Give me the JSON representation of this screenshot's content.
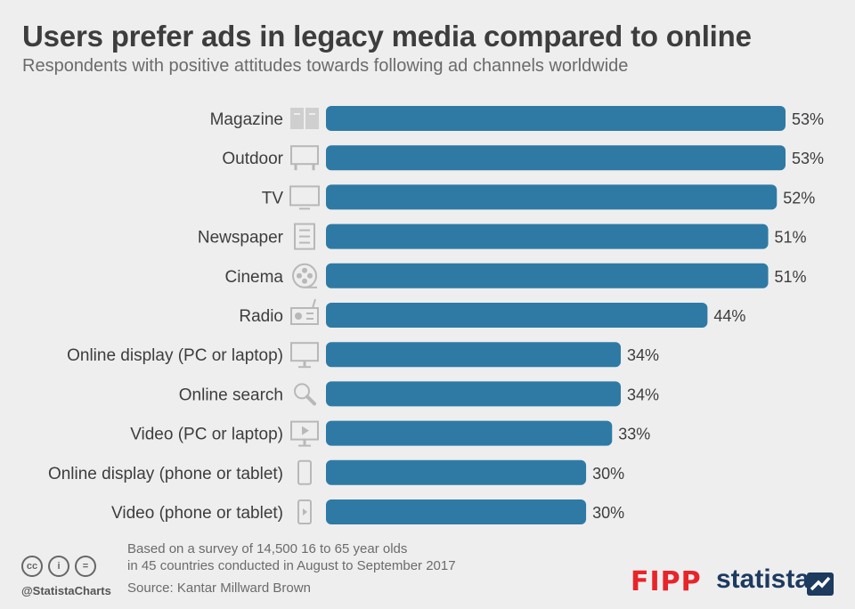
{
  "title": "Users prefer ads in legacy media compared to online",
  "subtitle": "Respondents with positive attitudes towards following ad channels worldwide",
  "chart_data": {
    "type": "bar",
    "orientation": "horizontal",
    "categories": [
      "Magazine",
      "Outdoor",
      "TV",
      "Newspaper",
      "Cinema",
      "Radio",
      "Online display (PC or laptop)",
      "Online search",
      "Video (PC or laptop)",
      "Online display (phone or tablet)",
      "Video (phone or tablet)"
    ],
    "values": [
      53,
      53,
      52,
      51,
      51,
      44,
      34,
      34,
      33,
      30,
      30
    ],
    "value_labels": [
      "53%",
      "53%",
      "52%",
      "51%",
      "51%",
      "44%",
      "34%",
      "34%",
      "33%",
      "30%",
      "30%"
    ],
    "icons": [
      "magazine-icon",
      "billboard-icon",
      "tv-icon",
      "newspaper-icon",
      "film-reel-icon",
      "radio-icon",
      "monitor-icon",
      "search-icon",
      "video-monitor-icon",
      "phone-icon",
      "video-phone-icon"
    ],
    "bar_color": "#2e7aa4",
    "xlim": [
      0,
      53
    ],
    "grid": false,
    "legend": "none"
  },
  "footer": {
    "note_line1": "Based on a survey of 14,500 16 to 65 year olds",
    "note_line2": "in 45 countries conducted in August to September 2017",
    "source": "Source: Kantar Millward Brown",
    "handle": "@StatistaCharts",
    "logo_fipp": "FIPP",
    "logo_statista": "statista"
  }
}
